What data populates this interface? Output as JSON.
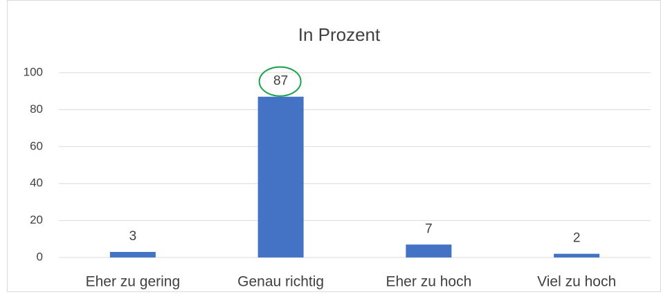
{
  "chart_data": {
    "type": "bar",
    "title": "In Prozent",
    "categories": [
      "Eher zu gering",
      "Genau richtig",
      "Eher zu hoch",
      "Viel zu hoch"
    ],
    "values": [
      3,
      87,
      7,
      2
    ],
    "color": "#4472c4",
    "ylim": [
      0,
      100
    ],
    "yticks": [
      0,
      20,
      40,
      60,
      80,
      100
    ],
    "grid": true
  }
}
